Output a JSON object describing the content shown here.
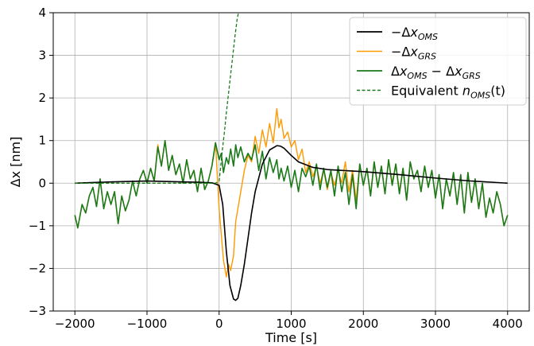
{
  "chart_data": {
    "type": "line",
    "xlabel": "Time [s]",
    "ylabel": "Δx [nm]",
    "xlim": [
      -2300,
      4300
    ],
    "ylim": [
      -3,
      4
    ],
    "xticks": [
      -2000,
      -1000,
      0,
      1000,
      2000,
      3000,
      4000
    ],
    "xtick_labels": [
      "−2000",
      "−1000",
      "0",
      "1000",
      "2000",
      "3000",
      "4000"
    ],
    "yticks": [
      -3,
      -2,
      -1,
      0,
      1,
      2,
      3,
      4
    ],
    "ytick_labels": [
      "−3",
      "−2",
      "−1",
      "0",
      "1",
      "2",
      "3",
      "4"
    ],
    "grid": true,
    "legend_position": "top-right",
    "colors": {
      "oms": "#000000",
      "grs": "#ff9900",
      "diff": "#1a7a1a",
      "noise": "#1a7a1a"
    },
    "series": [
      {
        "name": "−Δx_OMS",
        "legend": {
          "prefix": "−Δ",
          "base": "x",
          "sub": "OMS",
          "suffix": ""
        },
        "style": "solid",
        "x": [
          -2000,
          -1500,
          -1000,
          -500,
          -250,
          -100,
          0,
          50,
          100,
          150,
          200,
          230,
          260,
          300,
          350,
          400,
          450,
          500,
          600,
          700,
          800,
          850,
          900,
          1000,
          1100,
          1300,
          1500,
          2000,
          2500,
          3000,
          3500,
          4000
        ],
        "y": [
          0.0,
          0.03,
          0.05,
          0.03,
          0.02,
          0.01,
          -0.05,
          -0.5,
          -1.6,
          -2.4,
          -2.72,
          -2.75,
          -2.7,
          -2.4,
          -1.9,
          -1.3,
          -0.7,
          -0.2,
          0.45,
          0.78,
          0.88,
          0.87,
          0.82,
          0.65,
          0.5,
          0.37,
          0.32,
          0.27,
          0.2,
          0.12,
          0.05,
          0.0
        ]
      },
      {
        "name": "−Δx_GRS",
        "legend": {
          "prefix": "−Δ",
          "base": "x",
          "sub": "GRS",
          "suffix": ""
        },
        "style": "solid",
        "x": [
          -2000,
          -1960,
          -1900,
          -1850,
          -1800,
          -1750,
          -1700,
          -1650,
          -1600,
          -1550,
          -1500,
          -1450,
          -1400,
          -1350,
          -1300,
          -1250,
          -1200,
          -1150,
          -1100,
          -1050,
          -1000,
          -950,
          -900,
          -850,
          -800,
          -750,
          -700,
          -650,
          -600,
          -550,
          -500,
          -450,
          -400,
          -350,
          -300,
          -250,
          -200,
          -150,
          -100,
          -50,
          0,
          30,
          60,
          100,
          130,
          160,
          200,
          230,
          260,
          300,
          350,
          400,
          450,
          500,
          550,
          600,
          650,
          700,
          750,
          800,
          830,
          860,
          900,
          950,
          1000,
          1050,
          1100,
          1150,
          1200,
          1250,
          1300,
          1350,
          1400,
          1450,
          1500,
          1550,
          1600,
          1650,
          1700,
          1750,
          1800,
          1850,
          1900,
          1950,
          2000,
          2050,
          2100,
          2150,
          2200,
          2250,
          2300,
          2350,
          2400,
          2450,
          2500,
          2550,
          2600,
          2650,
          2700,
          2750,
          2800,
          2850,
          2900,
          2950,
          3000,
          3050,
          3100,
          3150,
          3200,
          3250,
          3300,
          3350,
          3400,
          3450,
          3500,
          3550,
          3600,
          3650,
          3700,
          3750,
          3800,
          3850,
          3900,
          3950,
          4000
        ],
        "y": [
          -0.75,
          -1.05,
          -0.5,
          -0.7,
          -0.3,
          -0.1,
          -0.55,
          0.1,
          -0.6,
          -0.2,
          -0.5,
          -0.2,
          -0.95,
          -0.3,
          -0.65,
          -0.4,
          0.05,
          -0.3,
          0.1,
          0.3,
          0.0,
          0.35,
          0.05,
          0.9,
          0.4,
          1.0,
          0.3,
          0.65,
          0.2,
          0.45,
          0.0,
          0.55,
          0.1,
          0.3,
          -0.2,
          0.35,
          -0.15,
          0.05,
          0.4,
          0.95,
          -0.6,
          -1.2,
          -1.8,
          -2.2,
          -1.9,
          -2.05,
          -1.7,
          -0.9,
          -0.6,
          -0.2,
          0.3,
          0.65,
          0.5,
          1.1,
          0.7,
          1.25,
          0.85,
          1.4,
          0.95,
          1.75,
          1.3,
          1.5,
          1.05,
          1.2,
          0.85,
          1.0,
          0.55,
          0.8,
          0.25,
          0.5,
          0.15,
          0.4,
          0.0,
          0.3,
          -0.15,
          0.25,
          -0.05,
          0.3,
          0.0,
          0.5,
          -0.2,
          0.3,
          -0.4,
          0.45,
          -0.05,
          0.35,
          -0.3,
          0.5,
          -0.1,
          0.4,
          -0.25,
          0.55,
          0.0,
          0.45,
          -0.2,
          0.35,
          -0.4,
          0.5,
          0.1,
          0.3,
          -0.2,
          0.4,
          -0.1,
          0.3,
          -0.35,
          0.2,
          -0.6,
          0.1,
          -0.3,
          0.25,
          -0.5,
          0.2,
          -0.7,
          0.25,
          -0.45,
          0.1,
          -0.6,
          0.0,
          -0.8,
          -0.35,
          -0.7,
          -0.2,
          -0.5,
          -1.0,
          -0.75
        ]
      },
      {
        "name": "Δx_OMS − Δx_GRS",
        "legend": {
          "prefix": "Δ",
          "base": "x",
          "sub": "OMS",
          "suffix": " − Δx_GRS"
        },
        "style": "solid",
        "x": [
          -2000,
          -1960,
          -1900,
          -1850,
          -1800,
          -1750,
          -1700,
          -1650,
          -1600,
          -1550,
          -1500,
          -1450,
          -1400,
          -1350,
          -1300,
          -1250,
          -1200,
          -1150,
          -1100,
          -1050,
          -1000,
          -950,
          -900,
          -850,
          -800,
          -750,
          -700,
          -650,
          -600,
          -550,
          -500,
          -450,
          -400,
          -350,
          -300,
          -250,
          -200,
          -150,
          -100,
          -50,
          0,
          30,
          60,
          100,
          130,
          160,
          200,
          230,
          260,
          300,
          350,
          400,
          450,
          500,
          550,
          600,
          650,
          700,
          750,
          800,
          830,
          860,
          900,
          950,
          1000,
          1050,
          1100,
          1150,
          1200,
          1250,
          1300,
          1350,
          1400,
          1450,
          1500,
          1550,
          1600,
          1650,
          1700,
          1750,
          1800,
          1850,
          1900,
          1950,
          2000,
          2050,
          2100,
          2150,
          2200,
          2250,
          2300,
          2350,
          2400,
          2450,
          2500,
          2550,
          2600,
          2650,
          2700,
          2750,
          2800,
          2850,
          2900,
          2950,
          3000,
          3050,
          3100,
          3150,
          3200,
          3250,
          3300,
          3350,
          3400,
          3450,
          3500,
          3550,
          3600,
          3650,
          3700,
          3750,
          3800,
          3850,
          3900,
          3950,
          4000
        ],
        "y": [
          -0.75,
          -1.05,
          -0.5,
          -0.7,
          -0.3,
          -0.1,
          -0.55,
          0.1,
          -0.6,
          -0.2,
          -0.5,
          -0.2,
          -0.95,
          -0.3,
          -0.65,
          -0.4,
          0.05,
          -0.3,
          0.1,
          0.3,
          0.0,
          0.35,
          0.05,
          0.85,
          0.4,
          1.0,
          0.3,
          0.65,
          0.2,
          0.45,
          0.0,
          0.55,
          0.1,
          0.3,
          -0.2,
          0.35,
          -0.15,
          0.05,
          0.4,
          0.95,
          0.55,
          0.7,
          0.25,
          0.6,
          0.45,
          0.8,
          0.4,
          0.9,
          0.6,
          0.85,
          0.5,
          0.7,
          0.55,
          0.9,
          0.3,
          0.75,
          0.1,
          0.6,
          0.25,
          0.55,
          0.1,
          0.35,
          0.05,
          0.4,
          -0.1,
          0.3,
          -0.2,
          0.35,
          0.15,
          0.4,
          -0.05,
          0.45,
          -0.15,
          0.35,
          -0.1,
          0.3,
          -0.3,
          0.4,
          -0.2,
          0.25,
          -0.5,
          0.2,
          -0.6,
          0.45,
          -0.05,
          0.35,
          -0.3,
          0.5,
          -0.1,
          0.4,
          -0.25,
          0.55,
          -0.05,
          0.45,
          -0.25,
          0.35,
          -0.4,
          0.5,
          0.1,
          0.3,
          -0.2,
          0.4,
          -0.1,
          0.3,
          -0.35,
          0.2,
          -0.6,
          0.1,
          -0.3,
          0.25,
          -0.5,
          0.2,
          -0.7,
          0.25,
          -0.45,
          0.1,
          -0.6,
          0.0,
          -0.8,
          -0.35,
          -0.7,
          -0.2,
          -0.5,
          -1.0,
          -0.75
        ]
      },
      {
        "name": "Equivalent n_OMS(t)",
        "legend": {
          "prefix": "Equivalent ",
          "base": "n",
          "sub": "OMS",
          "suffix": "(t)"
        },
        "style": "dashed",
        "x": [
          -2000,
          -1500,
          -1000,
          -500,
          -200,
          -50,
          0,
          20,
          40,
          60,
          80,
          100,
          130,
          160,
          190,
          220,
          250,
          275
        ],
        "y": [
          0.0,
          0.0,
          0.0,
          0.0,
          0.0,
          0.0,
          0.05,
          0.35,
          0.7,
          1.0,
          1.3,
          1.65,
          2.1,
          2.55,
          3.0,
          3.45,
          3.85,
          4.05
        ]
      }
    ]
  }
}
